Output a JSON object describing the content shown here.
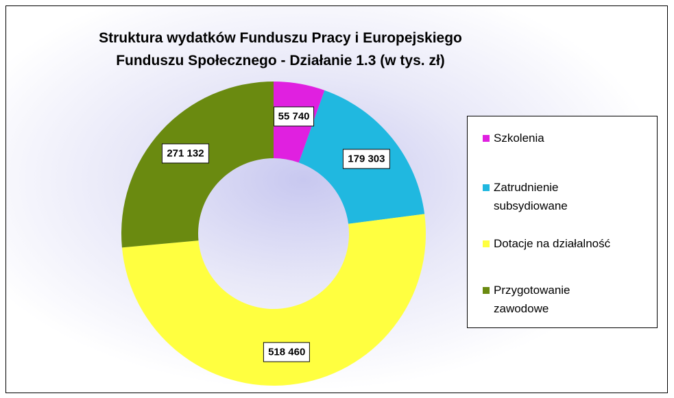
{
  "chart_data": {
    "type": "donut",
    "title": "Struktura wydatków Funduszu Pracy i Europejskiego Funduszu Społecznego - Działanie 1.3 (w tys. zł)",
    "categories": [
      "Szkolenia",
      "Zatrudnienie subsydiowane",
      "Dotacje na działalność",
      "Przygotowanie zawodowe"
    ],
    "values": [
      55740,
      179303,
      518460,
      271132
    ],
    "value_labels": [
      "55 740",
      "179 303",
      "518 460",
      "271 132"
    ],
    "colors": [
      "#e020e0",
      "#20b8e0",
      "#ffff40",
      "#6a8a10"
    ],
    "legend": "right"
  }
}
